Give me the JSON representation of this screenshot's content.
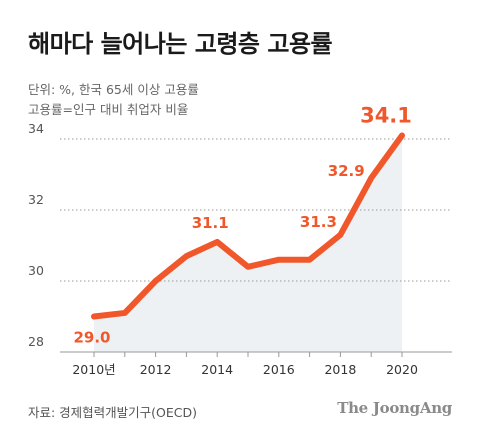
{
  "header": {
    "title": "해마다 늘어나는 고령층 고용률",
    "subtitle1": "단위: %, 한국 65세 이상 고용률",
    "subtitle2": "고용률=인구 대비 취업자 비율"
  },
  "footer": {
    "source": "자료: 경제협력개발기구(OECD)",
    "brand": "The JoongAng"
  },
  "colors": {
    "line": "#f0572a",
    "label": "#f0572a",
    "area": "#eef1f4",
    "grid": "#999999",
    "axis_text": "#555555"
  },
  "chart_data": {
    "type": "area",
    "title": "해마다 늘어나는 고령층 고용률",
    "x": [
      2010,
      2011,
      2012,
      2013,
      2014,
      2015,
      2016,
      2017,
      2018,
      2019,
      2020
    ],
    "series": [
      {
        "values": [
          29.0,
          29.1,
          30.0,
          30.7,
          31.1,
          30.4,
          30.6,
          30.6,
          31.3,
          32.9,
          34.1
        ]
      }
    ],
    "xlabel": "",
    "ylabel": "",
    "ylim": [
      28,
      34
    ],
    "yticks": [
      28,
      30,
      32,
      34
    ],
    "xticks": [
      {
        "value": 2010,
        "label": "2010년"
      },
      {
        "value": 2012,
        "label": "2012"
      },
      {
        "value": 2014,
        "label": "2014"
      },
      {
        "value": 2016,
        "label": "2016"
      },
      {
        "value": 2018,
        "label": "2018"
      },
      {
        "value": 2020,
        "label": "2020"
      }
    ],
    "data_labels": [
      {
        "x": 2010,
        "text": "29.0"
      },
      {
        "x": 2014,
        "text": "31.1"
      },
      {
        "x": 2018,
        "text": "31.3"
      },
      {
        "x": 2019,
        "text": "32.9"
      },
      {
        "x": 2020,
        "text": "34.1"
      }
    ],
    "grid": true
  }
}
